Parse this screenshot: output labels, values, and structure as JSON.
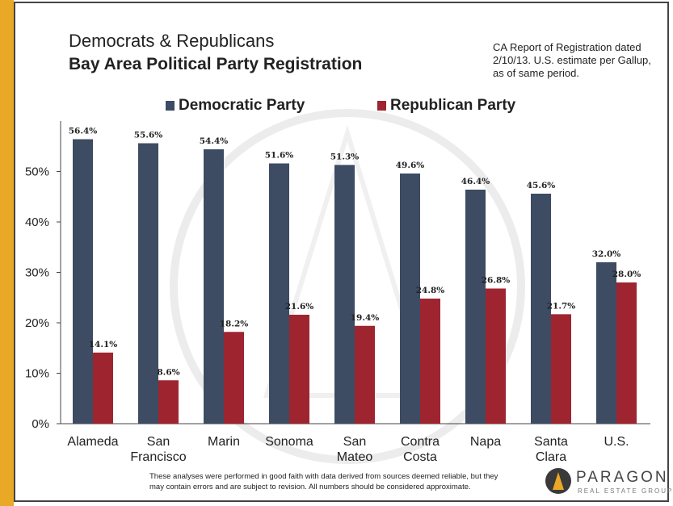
{
  "header": {
    "title": "Democrats & Republicans",
    "subtitle": "Bay Area Political Party Registration",
    "note": "CA Report of Registration dated 2/10/13. U.S. estimate per Gallup, as of same period."
  },
  "colors": {
    "democratic": "#3D4B63",
    "republican": "#9E2530",
    "accent": "#E9A825"
  },
  "chart_data": {
    "type": "bar",
    "categories": [
      [
        "Alameda"
      ],
      [
        "San",
        "Francisco"
      ],
      [
        "Marin"
      ],
      [
        "Sonoma"
      ],
      [
        "San",
        "Mateo"
      ],
      [
        "Contra",
        "Costa"
      ],
      [
        "Napa"
      ],
      [
        "Santa",
        "Clara"
      ],
      [
        "U.S."
      ]
    ],
    "series": [
      {
        "name": "Democratic Party",
        "values": [
          56.4,
          55.6,
          54.4,
          51.6,
          51.3,
          49.6,
          46.4,
          45.6,
          32.0
        ],
        "labels": [
          "56.4%",
          "55.6%",
          "54.4%",
          "51.6%",
          "51.3%",
          "49.6%",
          "46.4%",
          "45.6%",
          "32.0%"
        ]
      },
      {
        "name": "Republican Party",
        "values": [
          14.1,
          8.6,
          18.2,
          21.6,
          19.4,
          24.8,
          26.8,
          21.7,
          28.0
        ],
        "labels": [
          "14.1%",
          "8.6%",
          "18.2%",
          "21.6%",
          "19.4%",
          "24.8%",
          "26.8%",
          "21.7%",
          "28.0%"
        ]
      }
    ],
    "ylim": [
      0,
      60
    ],
    "yticks": [
      0,
      10,
      20,
      30,
      40,
      50
    ],
    "ytick_labels": [
      "0%",
      "10%",
      "20%",
      "30%",
      "40%",
      "50%"
    ],
    "grid": false,
    "legend": "top"
  },
  "footer": {
    "disclaimer": "These analyses were performed in good faith with data derived from sources deemed reliable, but they may contain errors and are subject to revision. All numbers should be considered approximate."
  },
  "logo": {
    "name": "PARAGON",
    "tagline": "REAL ESTATE GROUP"
  }
}
